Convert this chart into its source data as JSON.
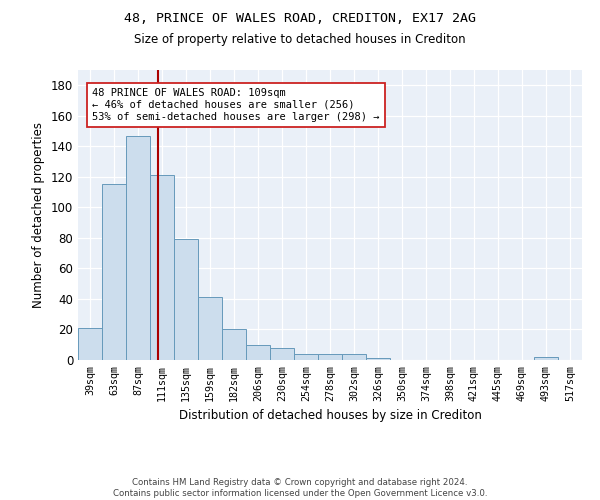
{
  "title1": "48, PRINCE OF WALES ROAD, CREDITON, EX17 2AG",
  "title2": "Size of property relative to detached houses in Crediton",
  "xlabel": "Distribution of detached houses by size in Crediton",
  "ylabel": "Number of detached properties",
  "bar_color": "#ccdded",
  "bar_edge_color": "#6699bb",
  "bg_color": "#eaf0f8",
  "categories": [
    "39sqm",
    "63sqm",
    "87sqm",
    "111sqm",
    "135sqm",
    "159sqm",
    "182sqm",
    "206sqm",
    "230sqm",
    "254sqm",
    "278sqm",
    "302sqm",
    "326sqm",
    "350sqm",
    "374sqm",
    "398sqm",
    "421sqm",
    "445sqm",
    "469sqm",
    "493sqm",
    "517sqm"
  ],
  "values": [
    21,
    115,
    147,
    121,
    79,
    41,
    20,
    10,
    8,
    4,
    4,
    4,
    1,
    0,
    0,
    0,
    0,
    0,
    0,
    2,
    0
  ],
  "ylim": [
    0,
    190
  ],
  "yticks": [
    0,
    20,
    40,
    60,
    80,
    100,
    120,
    140,
    160,
    180
  ],
  "vline_x": 2.82,
  "annotation_text": "48 PRINCE OF WALES ROAD: 109sqm\n← 46% of detached houses are smaller (256)\n53% of semi-detached houses are larger (298) →",
  "footer": "Contains HM Land Registry data © Crown copyright and database right 2024.\nContains public sector information licensed under the Open Government Licence v3.0.",
  "vline_color": "#aa0000",
  "annotation_box_color": "#ffffff",
  "annotation_box_edge": "#cc2222"
}
